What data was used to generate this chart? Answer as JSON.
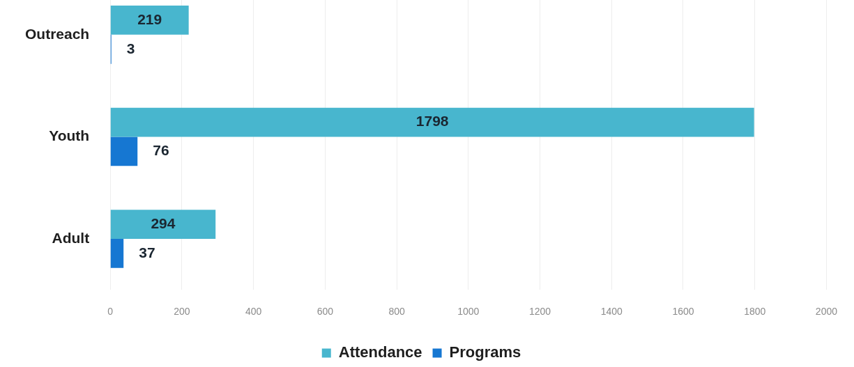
{
  "chart_data": {
    "type": "bar",
    "orientation": "horizontal",
    "categories": [
      "Outreach",
      "Youth",
      "Adult"
    ],
    "series": [
      {
        "name": "Attendance",
        "color": "#48b6ce",
        "values": [
          219,
          1798,
          294
        ]
      },
      {
        "name": "Programs",
        "color": "#1677d2",
        "values": [
          3,
          76,
          37
        ]
      }
    ],
    "xlim": [
      0,
      2000
    ],
    "xticks": [
      0,
      200,
      400,
      600,
      800,
      1000,
      1200,
      1400,
      1600,
      1800,
      2000
    ],
    "grid": "x",
    "legend": "bottom",
    "data_labels": true
  }
}
